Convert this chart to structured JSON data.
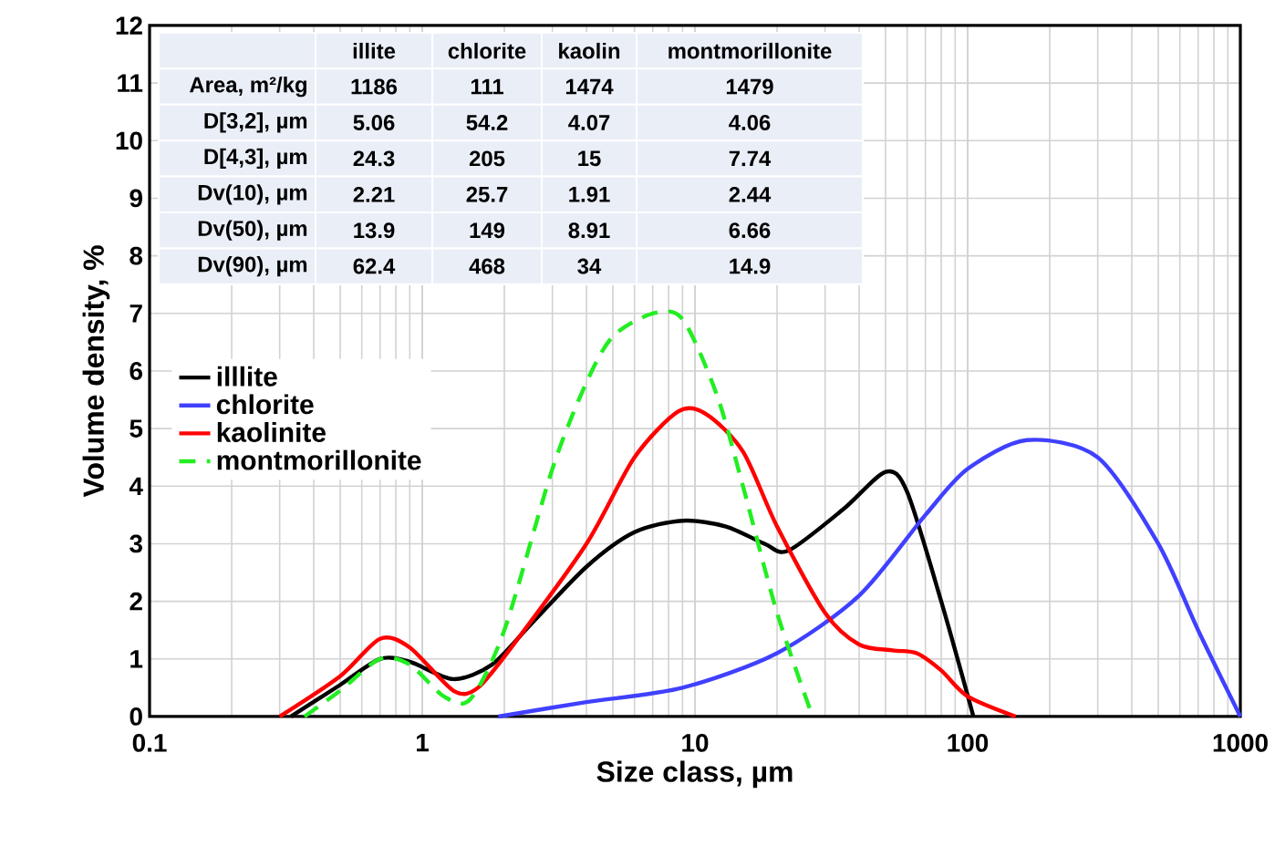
{
  "chart_data": {
    "type": "line",
    "xlabel": "Size class, µm",
    "ylabel": "Volume density, %",
    "log": "x",
    "xlim": [
      0.1,
      1000
    ],
    "xticks": [
      0.1,
      1,
      10,
      100,
      1000
    ],
    "ylim": [
      0,
      12
    ],
    "yticks": [
      0,
      1,
      2,
      3,
      4,
      5,
      6,
      7,
      8,
      9,
      10,
      11,
      12
    ],
    "grid": true,
    "legend": "left",
    "series": [
      {
        "name": "illlite",
        "color": "#000000",
        "line_style": "solid",
        "x": [
          0.33,
          0.5,
          0.7,
          0.9,
          1.3,
          1.8,
          2.5,
          4,
          6,
          9,
          13,
          18,
          22,
          35,
          50,
          60,
          80,
          105
        ],
        "values": [
          0,
          0.55,
          1.0,
          0.95,
          0.65,
          0.9,
          1.6,
          2.6,
          3.2,
          3.4,
          3.3,
          3.0,
          2.88,
          3.6,
          4.25,
          3.9,
          2.0,
          0
        ]
      },
      {
        "name": "chlorite",
        "color": "#4040ff",
        "line_style": "solid",
        "x": [
          1.9,
          4,
          9,
          20,
          40,
          70,
          100,
          165,
          300,
          500,
          700,
          1000
        ],
        "values": [
          0,
          0.25,
          0.5,
          1.1,
          2.1,
          3.5,
          4.3,
          4.8,
          4.5,
          3.0,
          1.5,
          0
        ]
      },
      {
        "name": "kaolinite",
        "color": "#ff0000",
        "line_style": "solid",
        "x": [
          0.3,
          0.5,
          0.7,
          0.9,
          1.3,
          1.6,
          2.2,
          4,
          6,
          8.7,
          11,
          15,
          20,
          30,
          40,
          53,
          65,
          80,
          100,
          150
        ],
        "values": [
          0,
          0.7,
          1.35,
          1.2,
          0.45,
          0.5,
          1.3,
          3.0,
          4.5,
          5.3,
          5.25,
          4.6,
          3.3,
          1.8,
          1.25,
          1.15,
          1.1,
          0.8,
          0.35,
          0
        ]
      },
      {
        "name": "montmorillonite",
        "color": "#22ee22",
        "line_style": "dashed",
        "x": [
          0.37,
          0.5,
          0.7,
          0.9,
          1.2,
          1.5,
          2,
          3,
          4,
          5,
          7,
          9,
          12,
          15,
          20,
          27
        ],
        "values": [
          0,
          0.45,
          1.0,
          0.9,
          0.35,
          0.3,
          1.5,
          4.3,
          5.8,
          6.6,
          7.0,
          6.9,
          5.6,
          4.0,
          1.8,
          0
        ]
      }
    ],
    "annotations": [
      "illite",
      "chlorite",
      "kaolin",
      "montmorillonite",
      "Area, m²/kg",
      "1186",
      "111",
      "1474",
      "1479",
      "D[3,2], µm",
      "5.06",
      "54.2",
      "4.07",
      "4.06",
      "D[4,3], µm",
      "24.3",
      "205",
      "15",
      "7.74",
      "Dv(10), µm",
      "2.21",
      "25.7",
      "1.91",
      "2.44",
      "Dv(50), µm",
      "13.9",
      "149",
      "8.91",
      "6.66",
      "Dv(90), µm",
      "62.4",
      "468",
      "34",
      "14.9"
    ]
  }
}
